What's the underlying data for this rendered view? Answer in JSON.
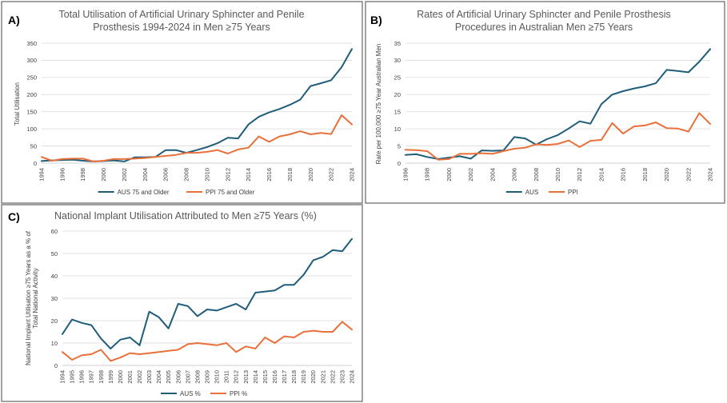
{
  "colors": {
    "aus": "#1f5d7a",
    "ppi": "#e8703a"
  },
  "chart_data": [
    {
      "type": "line",
      "letter": "A)",
      "title_lines": [
        "Total Utilisation of Artificial Urinary Sphincter and Penile",
        "Prosthesis 1994-2024 in Men ≥75 Years"
      ],
      "ylabel": "Total Utilisation",
      "ylim": [
        0,
        350
      ],
      "yticks": [
        0,
        50,
        100,
        150,
        200,
        250,
        300,
        350
      ],
      "x": [
        1994,
        1995,
        1996,
        1997,
        1998,
        1999,
        2000,
        2001,
        2002,
        2003,
        2004,
        2005,
        2006,
        2007,
        2008,
        2009,
        2010,
        2011,
        2012,
        2013,
        2014,
        2015,
        2016,
        2017,
        2018,
        2019,
        2020,
        2021,
        2022,
        2023,
        2024
      ],
      "xticks": [
        "1994",
        "1996",
        "1998",
        "2000",
        "2002",
        "2004",
        "2006",
        "2008",
        "2010",
        "2012",
        "2014",
        "2016",
        "2018",
        "2020",
        "2022",
        "2024"
      ],
      "xtick_step": 2,
      "grid": true,
      "legend_position": "bottom",
      "series": [
        {
          "name": "AUS 75 and Older",
          "color_key": "aus",
          "values": [
            6,
            8,
            9,
            10,
            7,
            5,
            6,
            8,
            5,
            17,
            17,
            18,
            38,
            38,
            30,
            38,
            47,
            58,
            74,
            72,
            113,
            135,
            148,
            158,
            170,
            185,
            225,
            233,
            242,
            280,
            333
          ]
        },
        {
          "name": "PPI 75 and Older",
          "color_key": "ppi",
          "values": [
            18,
            7,
            12,
            13,
            13,
            5,
            7,
            12,
            12,
            13,
            15,
            18,
            21,
            24,
            30,
            30,
            33,
            38,
            28,
            40,
            45,
            78,
            62,
            78,
            84,
            93,
            84,
            88,
            85,
            140,
            113
          ]
        }
      ]
    },
    {
      "type": "line",
      "letter": "B)",
      "title_lines": [
        "Rates of Artificial Urinary Sphincter and Penile Prosthesis",
        "Procedures  in Australian Men ≥75 Years"
      ],
      "ylabel": "Rate per 100,000 ≥75 Year Australian Men",
      "ylim": [
        0,
        35
      ],
      "yticks": [
        0,
        5,
        10,
        15,
        20,
        25,
        30,
        35
      ],
      "x": [
        1996,
        1997,
        1998,
        1999,
        2000,
        2001,
        2002,
        2003,
        2004,
        2005,
        2006,
        2007,
        2008,
        2009,
        2010,
        2011,
        2012,
        2013,
        2014,
        2015,
        2016,
        2017,
        2018,
        2019,
        2020,
        2021,
        2022,
        2023,
        2024
      ],
      "xticks": [
        "1996",
        "1998",
        "2000",
        "2002",
        "2004",
        "2006",
        "2008",
        "2010",
        "2012",
        "2014",
        "2016",
        "2018",
        "2020",
        "2022",
        "2024"
      ],
      "xtick_step": 2,
      "grid": true,
      "legend_position": "bottom",
      "series": [
        {
          "name": "AUS",
          "color_key": "aus",
          "values": [
            2.4,
            2.6,
            1.8,
            1.2,
            1.6,
            2.0,
            1.3,
            3.7,
            3.6,
            3.7,
            7.6,
            7.2,
            5.4,
            7.0,
            8.2,
            10.1,
            12.2,
            11.5,
            17.2,
            20.0,
            21.0,
            21.8,
            22.4,
            23.3,
            27.2,
            26.9,
            26.5,
            29.6,
            33.3
          ]
        },
        {
          "name": "PPI",
          "color_key": "ppi",
          "values": [
            3.9,
            3.8,
            3.5,
            1.0,
            1.2,
            2.7,
            2.7,
            2.9,
            2.7,
            3.5,
            4.2,
            4.5,
            5.5,
            5.3,
            5.6,
            6.6,
            4.7,
            6.5,
            6.8,
            11.7,
            8.6,
            10.7,
            11.0,
            11.9,
            10.2,
            10.1,
            9.2,
            14.6,
            11.4
          ]
        }
      ]
    },
    {
      "type": "line",
      "letter": "C)",
      "title_lines": [
        "National Implant Utilisation Attributed to Men ≥75 Years (%)"
      ],
      "ylabel_lines": [
        "National Implant Utilisation ≥75 Years as a % of",
        "Total National Activity"
      ],
      "ylim": [
        0,
        60
      ],
      "yticks": [
        0,
        10,
        20,
        30,
        40,
        50,
        60
      ],
      "x": [
        "1994",
        "1995",
        "1996",
        "1997",
        "1998",
        "1999",
        "2000",
        "2001",
        "2002",
        "2003",
        "2004",
        "2005",
        "2006",
        "2007",
        "2008",
        "2009",
        "2010",
        "2011",
        "2012",
        "2013",
        "2014",
        "2015",
        "2016",
        "2017",
        "2018",
        "2019",
        "2020",
        "2021",
        "2022",
        "2023",
        "2024"
      ],
      "xtick_step": 1,
      "grid": true,
      "legend_position": "bottom",
      "series": [
        {
          "name": "AUS %",
          "color_key": "aus",
          "values": [
            14,
            20.5,
            19,
            18,
            12,
            7.5,
            11.5,
            12.5,
            9,
            24,
            21.5,
            16.5,
            27.5,
            26.5,
            22,
            25,
            24.5,
            26,
            27.5,
            25,
            32.5,
            33,
            33.5,
            36,
            36,
            40.5,
            47,
            48.5,
            51.5,
            51,
            56.5
          ]
        },
        {
          "name": "PPI %",
          "color_key": "ppi",
          "values": [
            6,
            2.5,
            4.5,
            5,
            7,
            2,
            3.5,
            5.5,
            5,
            5.5,
            6,
            6.5,
            7,
            9.5,
            10,
            9.5,
            9,
            10,
            6,
            8.5,
            7.5,
            12.5,
            10,
            13,
            12.5,
            15,
            15.5,
            15,
            15,
            19.5,
            16
          ]
        }
      ]
    }
  ]
}
